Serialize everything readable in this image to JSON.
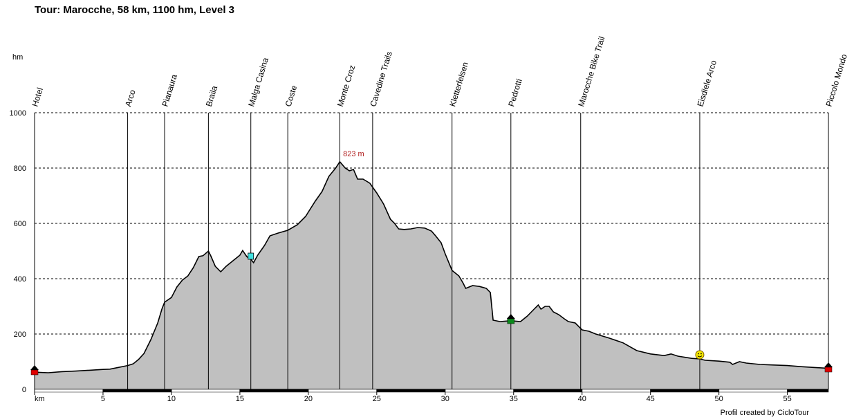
{
  "chart_data": {
    "type": "area",
    "title": "Tour: Marocche, 58 km, 1100 hm, Level 3",
    "ylabel": "hm",
    "xlabel": "km",
    "xlim": [
      0,
      58
    ],
    "ylim": [
      0,
      1000
    ],
    "x_ticks": [
      "km",
      "5",
      "10",
      "15",
      "20",
      "25",
      "30",
      "35",
      "40",
      "45",
      "50",
      "55"
    ],
    "y_ticks": [
      "0",
      "200",
      "400",
      "600",
      "800",
      "1000"
    ],
    "grid": "dashed horizontal",
    "fill_color": "#c0c0c0",
    "line_color": "#000000",
    "peak": {
      "x": 22.3,
      "y": 823,
      "label": "823 m"
    },
    "waypoints": [
      {
        "name": "Hotel",
        "km": 0.0
      },
      {
        "name": "Arco",
        "km": 6.8
      },
      {
        "name": "Pianaura",
        "km": 9.5
      },
      {
        "name": "Braila",
        "km": 12.7
      },
      {
        "name": "Malga Casina",
        "km": 15.8
      },
      {
        "name": "Coste",
        "km": 18.5
      },
      {
        "name": "Monte Croz",
        "km": 22.3
      },
      {
        "name": "Cavedine Trails",
        "km": 24.7
      },
      {
        "name": "Kletterfelsen",
        "km": 30.5
      },
      {
        "name": "Pedrotti",
        "km": 34.8
      },
      {
        "name": "Marocche Bike Trail",
        "km": 39.9
      },
      {
        "name": "Eisdiele Arco",
        "km": 48.6
      },
      {
        "name": "Piccolo Mondo",
        "km": 58.0
      }
    ],
    "markers": [
      {
        "kind": "start-marker",
        "km": 0.0,
        "alt": 70
      },
      {
        "kind": "hut-marker",
        "km": 15.8,
        "alt": 480
      },
      {
        "kind": "house-marker",
        "km": 34.8,
        "alt": 255
      },
      {
        "kind": "smiley-marker",
        "km": 48.6,
        "alt": 125
      },
      {
        "kind": "finish-marker",
        "km": 58.0,
        "alt": 80
      }
    ],
    "profile": [
      [
        0,
        62
      ],
      [
        1,
        60
      ],
      [
        2,
        64
      ],
      [
        3,
        66
      ],
      [
        4,
        69
      ],
      [
        5,
        72
      ],
      [
        5.5,
        73
      ],
      [
        6,
        78
      ],
      [
        6.8,
        86
      ],
      [
        7.2,
        92
      ],
      [
        7.6,
        108
      ],
      [
        8,
        130
      ],
      [
        8.5,
        180
      ],
      [
        9,
        240
      ],
      [
        9.3,
        290
      ],
      [
        9.5,
        315
      ],
      [
        10,
        332
      ],
      [
        10.4,
        370
      ],
      [
        10.8,
        395
      ],
      [
        11.2,
        410
      ],
      [
        11.6,
        440
      ],
      [
        12,
        480
      ],
      [
        12.3,
        483
      ],
      [
        12.7,
        500
      ],
      [
        12.9,
        480
      ],
      [
        13.2,
        445
      ],
      [
        13.6,
        425
      ],
      [
        14,
        445
      ],
      [
        14.5,
        465
      ],
      [
        15,
        485
      ],
      [
        15.2,
        502
      ],
      [
        15.5,
        480
      ],
      [
        15.8,
        470
      ],
      [
        16,
        458
      ],
      [
        16.3,
        485
      ],
      [
        16.8,
        520
      ],
      [
        17.2,
        555
      ],
      [
        17.8,
        565
      ],
      [
        18.5,
        575
      ],
      [
        19.2,
        595
      ],
      [
        19.8,
        625
      ],
      [
        20.5,
        680
      ],
      [
        21,
        715
      ],
      [
        21.5,
        770
      ],
      [
        22,
        800
      ],
      [
        22.3,
        823
      ],
      [
        22.7,
        800
      ],
      [
        23,
        790
      ],
      [
        23.3,
        795
      ],
      [
        23.6,
        760
      ],
      [
        24,
        760
      ],
      [
        24.5,
        745
      ],
      [
        25,
        710
      ],
      [
        25.5,
        670
      ],
      [
        26,
        615
      ],
      [
        26.3,
        600
      ],
      [
        26.6,
        580
      ],
      [
        27,
        578
      ],
      [
        27.5,
        580
      ],
      [
        28,
        585
      ],
      [
        28.5,
        583
      ],
      [
        29,
        572
      ],
      [
        29.3,
        555
      ],
      [
        29.7,
        530
      ],
      [
        30,
        490
      ],
      [
        30.5,
        430
      ],
      [
        31,
        410
      ],
      [
        31.3,
        385
      ],
      [
        31.5,
        365
      ],
      [
        32,
        375
      ],
      [
        32.5,
        372
      ],
      [
        33,
        365
      ],
      [
        33.3,
        350
      ],
      [
        33.5,
        250
      ],
      [
        34,
        245
      ],
      [
        34.8,
        248
      ],
      [
        35.5,
        245
      ],
      [
        36,
        265
      ],
      [
        36.5,
        290
      ],
      [
        36.8,
        305
      ],
      [
        37,
        290
      ],
      [
        37.3,
        300
      ],
      [
        37.6,
        300
      ],
      [
        37.9,
        280
      ],
      [
        38.3,
        270
      ],
      [
        38.7,
        255
      ],
      [
        39,
        245
      ],
      [
        39.5,
        240
      ],
      [
        40,
        215
      ],
      [
        40.5,
        210
      ],
      [
        41,
        200
      ],
      [
        42,
        185
      ],
      [
        43,
        168
      ],
      [
        44,
        140
      ],
      [
        45,
        128
      ],
      [
        46,
        122
      ],
      [
        46.5,
        128
      ],
      [
        47,
        120
      ],
      [
        48,
        112
      ],
      [
        48.6,
        110
      ],
      [
        49,
        105
      ],
      [
        50,
        102
      ],
      [
        50.8,
        98
      ],
      [
        51,
        90
      ],
      [
        51.5,
        100
      ],
      [
        52,
        95
      ],
      [
        53,
        90
      ],
      [
        54,
        88
      ],
      [
        55,
        86
      ],
      [
        56,
        82
      ],
      [
        57,
        79
      ],
      [
        58,
        76
      ]
    ],
    "x_bar_segments": [
      [
        5,
        10
      ],
      [
        15,
        20
      ],
      [
        25,
        30
      ],
      [
        35,
        40
      ],
      [
        45,
        50
      ],
      [
        55,
        58
      ]
    ]
  },
  "footer": {
    "credit": "Profil created by CicloTour"
  }
}
